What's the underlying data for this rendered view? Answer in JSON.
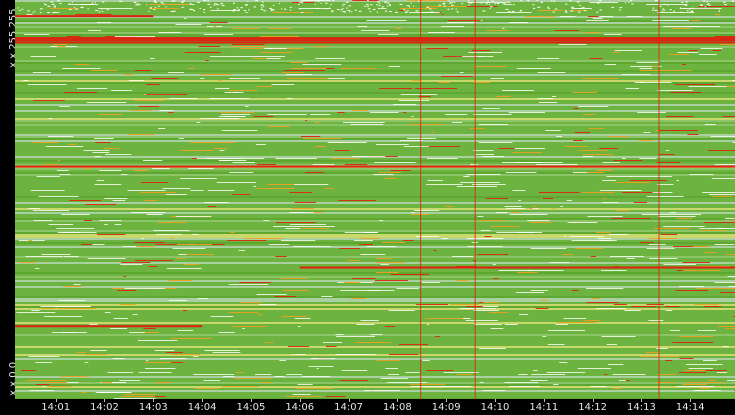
{
  "chart_data": {
    "type": "heatmap",
    "y_labels": {
      "top": "x.x.255.255",
      "bottom": "x.x.0.0"
    },
    "x_tick_labels": [
      "14:01",
      "14:02",
      "14:03",
      "14:04",
      "14:05",
      "14:06",
      "14:07",
      "14:08",
      "14:09",
      "14:10",
      "14:11",
      "14:12",
      "14:13",
      "14:14"
    ],
    "x_range": [
      "14:00:10",
      "14:14:55"
    ],
    "vertical_event_lines": [
      "14:08:28",
      "14:09:35",
      "14:13:21"
    ],
    "colors": {
      "background": "#000000",
      "low": "#ffffff",
      "low_mid": "#a8d0a0",
      "mid": "#6db33f",
      "high_mid": "#f0a020",
      "high": "#e02010",
      "event_line": "#e02010"
    },
    "highlighted_rows": [
      {
        "y_fraction_from_top": 0.093,
        "level": "high",
        "span": [
          "14:00:10",
          "14:14:55"
        ]
      },
      {
        "y_fraction_from_top": 0.098,
        "level": "high",
        "span": [
          "14:00:10",
          "14:14:55"
        ]
      },
      {
        "y_fraction_from_top": 0.104,
        "level": "high",
        "span": [
          "14:00:10",
          "14:14:55"
        ]
      },
      {
        "y_fraction_from_top": 0.038,
        "level": "high",
        "span": [
          "14:00:10",
          "14:03:00"
        ]
      },
      {
        "y_fraction_from_top": 0.415,
        "level": "high",
        "span": [
          "14:00:10",
          "14:14:55"
        ]
      },
      {
        "y_fraction_from_top": 0.668,
        "level": "high",
        "span": [
          "14:06:00",
          "14:14:55"
        ]
      },
      {
        "y_fraction_from_top": 0.815,
        "level": "high",
        "span": [
          "14:00:10",
          "14:04:00"
        ]
      }
    ]
  }
}
